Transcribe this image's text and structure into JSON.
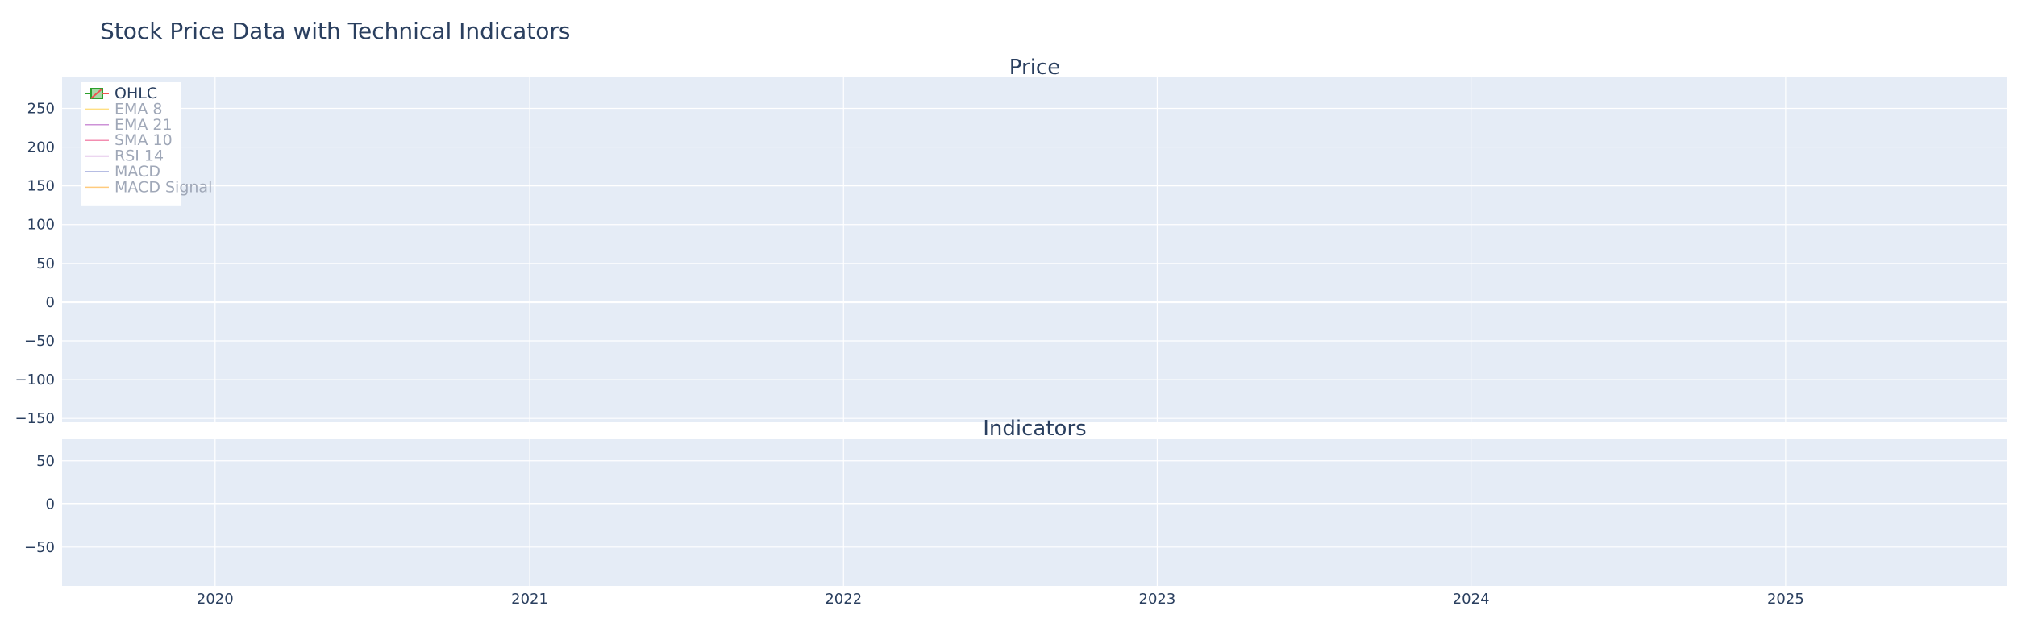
{
  "chart_data": {
    "type": "line",
    "title": "Stock Price Data with Technical Indicators",
    "subplots": [
      {
        "title": "Price",
        "y_ticks": [
          250,
          200,
          150,
          100,
          50,
          0,
          -50,
          -100,
          -150
        ],
        "ylim": [
          -155,
          290
        ],
        "grid": true
      },
      {
        "title": "Indicators",
        "y_ticks": [
          50,
          0,
          -50
        ],
        "ylim": [
          -95,
          75
        ],
        "grid": true
      }
    ],
    "x_ticks": [
      "2020",
      "2021",
      "2022",
      "2023",
      "2024",
      "2025"
    ],
    "xlim": [
      "2019-07-07",
      "2025-09-16"
    ],
    "legend": {
      "placement": "top-left",
      "entries": [
        {
          "name": "OHLC",
          "color": "#2ca02c",
          "visible": true,
          "symbol": "candlestick"
        },
        {
          "name": "EMA 8",
          "color": "#ffc107",
          "visible": false,
          "symbol": "line"
        },
        {
          "name": "EMA 21",
          "color": "#9c27b0",
          "visible": false,
          "symbol": "line"
        },
        {
          "name": "SMA 10",
          "color": "#e91e63",
          "visible": false,
          "symbol": "line"
        },
        {
          "name": "RSI 14",
          "color": "#9c27b0",
          "visible": false,
          "symbol": "line"
        },
        {
          "name": "MACD",
          "color": "#3f51b5",
          "visible": false,
          "symbol": "line"
        },
        {
          "name": "MACD Signal",
          "color": "#ff9800",
          "visible": false,
          "symbol": "line"
        }
      ]
    },
    "series": []
  },
  "colors": {
    "plot_bg": "#e5ecf6",
    "grid": "#ffffff",
    "text": "#2a3f5f",
    "increasing": "#2ca02c",
    "decreasing": "#ef5350",
    "legend_inactive_text": "#a0a8b8"
  }
}
